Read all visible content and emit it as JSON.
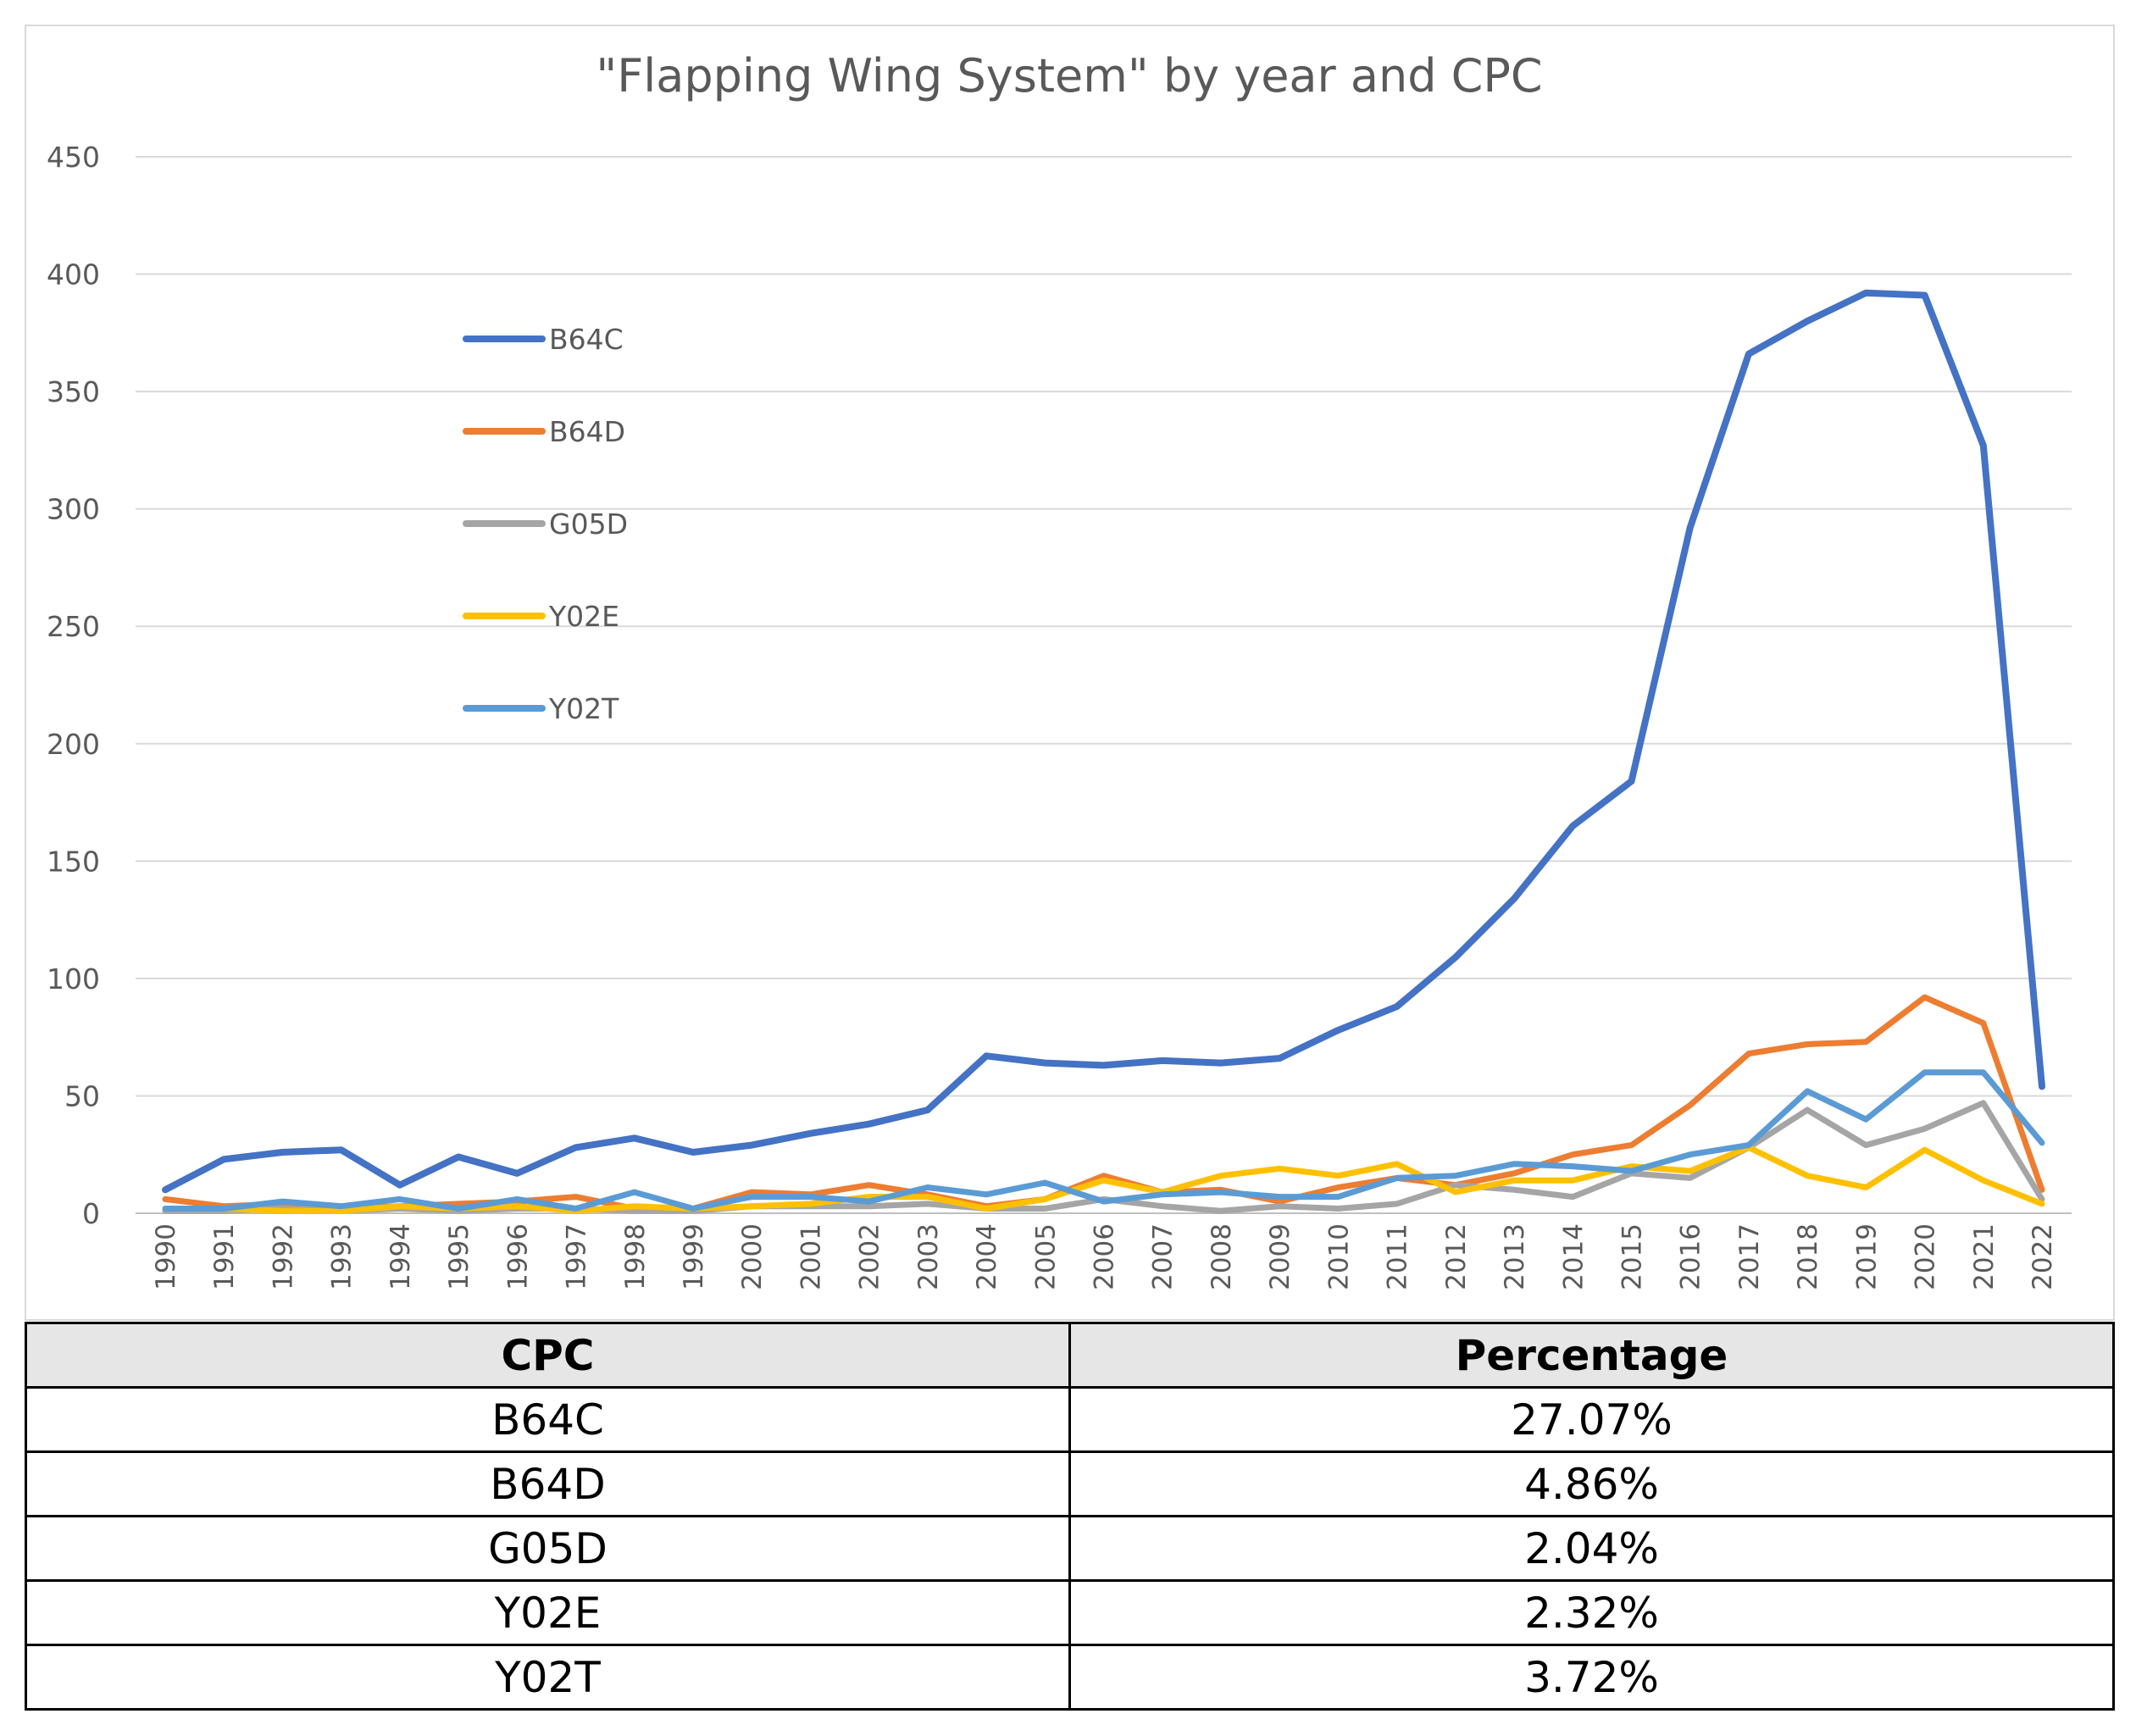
{
  "chart_data": {
    "type": "line",
    "title": "\"Flapping Wing System\" by year and CPC",
    "xlabel": "",
    "ylabel": "",
    "ylim": [
      0,
      450
    ],
    "yticks": [
      0,
      50,
      100,
      150,
      200,
      250,
      300,
      350,
      400,
      450
    ],
    "grid": true,
    "legend_position": "upper-left inside plot",
    "categories": [
      "1990",
      "1991",
      "1992",
      "1993",
      "1994",
      "1995",
      "1996",
      "1997",
      "1998",
      "1999",
      "2000",
      "2001",
      "2002",
      "2003",
      "2004",
      "2005",
      "2006",
      "2007",
      "2008",
      "2009",
      "2010",
      "2011",
      "2012",
      "2013",
      "2014",
      "2015",
      "2016",
      "2017",
      "2018",
      "2019",
      "2020",
      "2021",
      "2022"
    ],
    "series": [
      {
        "name": "B64C",
        "color": "#4472c4",
        "values": [
          10,
          23,
          26,
          27,
          12,
          24,
          17,
          28,
          32,
          26,
          29,
          34,
          38,
          44,
          67,
          64,
          63,
          65,
          64,
          66,
          78,
          88,
          109,
          134,
          165,
          184,
          292,
          366,
          380,
          392,
          391,
          327,
          54
        ]
      },
      {
        "name": "B64D",
        "color": "#ed7d31",
        "values": [
          6,
          3,
          4,
          2,
          3,
          4,
          5,
          7,
          2,
          2,
          9,
          8,
          12,
          8,
          3,
          6,
          16,
          9,
          10,
          5,
          11,
          15,
          12,
          17,
          25,
          29,
          46,
          68,
          72,
          73,
          92,
          81,
          10
        ]
      },
      {
        "name": "G05D",
        "color": "#a5a5a5",
        "values": [
          1,
          1,
          2,
          1,
          2,
          1,
          2,
          2,
          1,
          1,
          3,
          3,
          3,
          4,
          2,
          2,
          6,
          3,
          1,
          3,
          2,
          4,
          12,
          10,
          7,
          17,
          15,
          28,
          44,
          29,
          36,
          47,
          6
        ]
      },
      {
        "name": "Y02E",
        "color": "#ffc000",
        "values": [
          2,
          2,
          1,
          1,
          3,
          2,
          3,
          1,
          3,
          2,
          3,
          4,
          7,
          7,
          2,
          6,
          14,
          9,
          16,
          19,
          16,
          21,
          9,
          14,
          14,
          20,
          18,
          28,
          16,
          11,
          27,
          14,
          4
        ]
      },
      {
        "name": "Y02T",
        "color": "#5b9bd5",
        "values": [
          2,
          2,
          5,
          3,
          6,
          2,
          6,
          2,
          9,
          2,
          7,
          7,
          5,
          11,
          8,
          13,
          5,
          8,
          9,
          7,
          7,
          15,
          16,
          21,
          20,
          18,
          25,
          29,
          52,
          40,
          60,
          60,
          30
        ]
      }
    ]
  },
  "table": {
    "headers": [
      "CPC",
      "Percentage"
    ],
    "rows": [
      [
        "B64C",
        "27.07%"
      ],
      [
        "B64D",
        "4.86%"
      ],
      [
        "G05D",
        "2.04%"
      ],
      [
        "Y02E",
        "2.32%"
      ],
      [
        "Y02T",
        "3.72%"
      ]
    ]
  }
}
